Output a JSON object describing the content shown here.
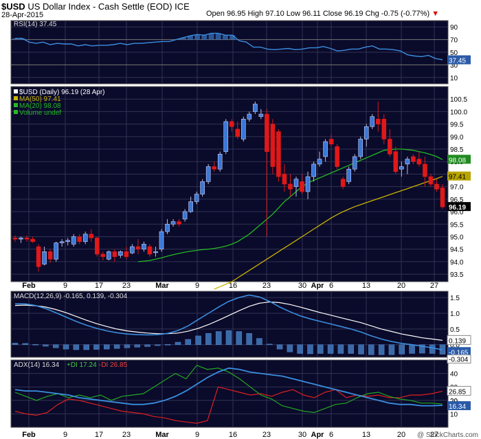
{
  "header": {
    "symbol": "$USD",
    "name": "US Dollar Index - Cash Settle (EOD)",
    "exchange": "ICE",
    "date": "28-Apr-2015",
    "ohlc": "Open 96.95  High 97.10  Low 96.11  Close 96.19  Chg -0.75 (-0.77%)",
    "chg_arrow": "▼"
  },
  "watermark": "@ StockCharts.com",
  "colors": {
    "background": "#0a0a2a",
    "grid": "#333355",
    "candle_up": "#3a78d8",
    "candle_down": "#e01818",
    "ma50": "#c8b400",
    "ma20": "#22bb22",
    "rsi": "#3a8fe0",
    "macd": "#3a8fe0",
    "signal": "#ffffff",
    "hist": "#3a6aa8",
    "adx": "#3a8fe0",
    "plus_di": "#22aa22",
    "minus_di": "#e02020"
  },
  "chart_data": [
    {
      "type": "line",
      "panel": "rsi",
      "legend": "RSI(14) 37.45",
      "ylim": [
        0,
        100
      ],
      "y_ticks": [
        "90",
        "70",
        "50",
        "30",
        "10"
      ],
      "last_label": "37.45",
      "values": [
        72,
        72,
        66,
        64,
        66,
        62,
        64,
        63,
        63,
        60,
        62,
        60,
        61,
        61,
        62,
        64,
        62,
        64,
        64,
        65,
        66,
        67,
        67,
        70,
        73,
        76,
        78,
        77,
        80,
        80,
        77,
        77,
        68,
        66,
        58,
        58,
        55,
        54,
        55,
        56,
        54,
        55,
        57,
        57,
        59,
        56,
        52,
        53,
        55,
        55,
        58,
        60,
        55,
        55,
        54,
        52,
        46,
        44,
        43,
        45,
        40,
        38
      ]
    },
    {
      "type": "candlestick",
      "panel": "price",
      "legend": [
        "$USD (Daily) 96.19 (28 Apr)",
        "MA(50) 97.41",
        "MA(20) 98.08",
        "Volume undef"
      ],
      "ylim": [
        93.2,
        101.0
      ],
      "y_ticks": [
        "100.5",
        "100.0",
        "99.5",
        "99.0",
        "98.5",
        "98.0",
        "97.5",
        "97.0",
        "96.5",
        "96.0",
        "95.5",
        "95.0",
        "94.5",
        "94.0",
        "93.5"
      ],
      "last_labels": {
        "ma20": "98.08",
        "ma50": "97.41",
        "close": "96.19"
      },
      "x_labels": [
        "Feb",
        "9",
        "17",
        "23",
        "Mar",
        "9",
        "16",
        "23",
        "30",
        "Apr",
        "6",
        "13",
        "20",
        "27"
      ],
      "candles": [
        [
          94.95,
          95.05,
          94.8,
          94.9
        ],
        [
          94.9,
          95.0,
          94.75,
          94.95
        ],
        [
          94.95,
          95.05,
          94.8,
          94.9
        ],
        [
          94.9,
          95.0,
          94.75,
          94.8
        ],
        [
          94.6,
          94.7,
          93.6,
          93.8
        ],
        [
          93.9,
          94.6,
          93.85,
          94.4
        ],
        [
          94.4,
          94.5,
          93.95,
          94.1
        ],
        [
          94.1,
          94.8,
          94.0,
          94.75
        ],
        [
          94.75,
          94.9,
          94.6,
          94.8
        ],
        [
          94.8,
          94.95,
          94.65,
          94.85
        ],
        [
          94.7,
          95.1,
          94.6,
          95.0
        ],
        [
          95.0,
          95.1,
          94.7,
          94.8
        ],
        [
          94.8,
          95.2,
          94.7,
          95.1
        ],
        [
          95.1,
          95.3,
          94.8,
          94.95
        ],
        [
          94.95,
          95.0,
          94.2,
          94.3
        ],
        [
          94.3,
          94.4,
          94.05,
          94.2
        ],
        [
          94.1,
          94.45,
          94.05,
          94.4
        ],
        [
          94.4,
          94.5,
          94.0,
          94.2
        ],
        [
          94.25,
          94.45,
          94.15,
          94.4
        ],
        [
          94.4,
          94.6,
          94.1,
          94.2
        ],
        [
          94.35,
          94.7,
          94.3,
          94.6
        ],
        [
          94.6,
          94.9,
          94.3,
          94.5
        ],
        [
          94.5,
          94.8,
          94.4,
          94.7
        ],
        [
          94.6,
          94.7,
          94.2,
          94.3
        ],
        [
          94.4,
          94.6,
          94.2,
          94.4
        ],
        [
          94.5,
          95.3,
          94.4,
          95.2
        ],
        [
          95.2,
          95.7,
          95.1,
          95.5
        ],
        [
          95.5,
          95.7,
          95.4,
          95.6
        ],
        [
          95.6,
          95.7,
          95.4,
          95.5
        ],
        [
          95.7,
          96.1,
          95.6,
          96.0
        ],
        [
          96.0,
          96.6,
          95.95,
          96.4
        ],
        [
          96.4,
          96.8,
          96.3,
          96.7
        ],
        [
          96.7,
          97.3,
          96.6,
          97.2
        ],
        [
          97.2,
          97.9,
          97.1,
          97.8
        ],
        [
          97.8,
          98.0,
          97.6,
          97.7
        ],
        [
          97.7,
          98.4,
          97.6,
          98.3
        ],
        [
          98.4,
          99.7,
          98.3,
          99.6
        ],
        [
          99.6,
          99.7,
          99.2,
          99.4
        ],
        [
          99.3,
          99.6,
          98.9,
          99.0
        ],
        [
          98.9,
          99.8,
          98.8,
          99.7
        ],
        [
          99.7,
          100.0,
          99.6,
          99.9
        ],
        [
          100.0,
          100.4,
          99.9,
          100.3
        ],
        [
          99.8,
          100.1,
          99.7,
          99.9
        ],
        [
          99.9,
          100.1,
          95.0,
          98.4
        ],
        [
          99.5,
          99.7,
          97.5,
          97.8
        ],
        [
          99.2,
          99.3,
          97.2,
          97.4
        ],
        [
          97.5,
          97.9,
          96.8,
          97.1
        ],
        [
          97.1,
          97.5,
          96.6,
          96.9
        ],
        [
          97.0,
          97.4,
          96.6,
          97.3
        ],
        [
          97.2,
          97.5,
          96.7,
          96.8
        ],
        [
          96.8,
          97.6,
          96.5,
          97.4
        ],
        [
          97.4,
          98.0,
          97.2,
          97.9
        ],
        [
          97.9,
          98.4,
          97.8,
          98.1
        ],
        [
          98.2,
          98.9,
          98.0,
          98.8
        ],
        [
          98.9,
          99.1,
          98.6,
          98.7
        ],
        [
          98.6,
          98.7,
          97.7,
          97.8
        ],
        [
          97.3,
          97.4,
          96.9,
          97.0
        ],
        [
          97.2,
          97.8,
          97.1,
          97.7
        ],
        [
          97.7,
          98.3,
          97.6,
          98.2
        ],
        [
          98.2,
          99.0,
          98.1,
          98.9
        ],
        [
          98.9,
          99.5,
          98.6,
          99.4
        ],
        [
          99.4,
          99.9,
          99.3,
          99.8
        ],
        [
          99.7,
          100.4,
          99.2,
          99.5
        ],
        [
          99.7,
          99.9,
          98.7,
          98.9
        ],
        [
          98.9,
          99.3,
          98.2,
          98.3
        ],
        [
          98.4,
          98.6,
          97.5,
          97.6
        ],
        [
          97.7,
          98.0,
          97.4,
          97.8
        ],
        [
          97.9,
          98.2,
          97.5,
          98.1
        ],
        [
          98.2,
          98.3,
          97.9,
          98.0
        ],
        [
          98.1,
          98.4,
          97.8,
          97.9
        ],
        [
          97.9,
          98.2,
          97.0,
          97.4
        ],
        [
          97.4,
          97.5,
          97.0,
          97.1
        ],
        [
          97.1,
          97.3,
          96.8,
          96.9
        ],
        [
          96.95,
          97.1,
          96.11,
          96.19
        ]
      ],
      "ma20": [
        94.0,
        94.02,
        94.05,
        94.1,
        94.15,
        94.22,
        94.28,
        94.33,
        94.38,
        94.42,
        94.45,
        94.48,
        94.5,
        94.53,
        94.57,
        94.62,
        94.7,
        94.8,
        94.95,
        95.1,
        95.3,
        95.5,
        95.7,
        95.9,
        96.15,
        96.4,
        96.6,
        96.8,
        97.0,
        97.15,
        97.25,
        97.35,
        97.45,
        97.55,
        97.65,
        97.75,
        97.85,
        97.95,
        98.05,
        98.15,
        98.25,
        98.35,
        98.45,
        98.48,
        98.5,
        98.5,
        98.48,
        98.45,
        98.4,
        98.35,
        98.28,
        98.2,
        98.08
      ],
      "ma50": [
        92.9,
        93.0,
        93.1,
        93.2,
        93.35,
        93.5,
        93.65,
        93.8,
        93.95,
        94.1,
        94.25,
        94.4,
        94.55,
        94.7,
        94.85,
        95.0,
        95.15,
        95.3,
        95.45,
        95.6,
        95.75,
        95.88,
        96.0,
        96.1,
        96.2,
        96.28,
        96.36,
        96.44,
        96.52,
        96.6,
        96.68,
        96.76,
        96.84,
        96.92,
        97.0,
        97.08,
        97.16,
        97.24,
        97.32,
        97.41
      ]
    },
    {
      "type": "line",
      "panel": "macd",
      "legend": "MACD(12,26,9) -0.165, 0.139, -0.304",
      "ylim": [
        -0.4,
        1.7
      ],
      "y_ticks": [
        "1.5",
        "1.0",
        "0.5",
        "0.0"
      ],
      "last_labels": [
        "0.139",
        "-0.165",
        "-0.304"
      ],
      "macd": [
        1.3,
        1.3,
        1.25,
        1.15,
        1.02,
        0.88,
        0.74,
        0.62,
        0.52,
        0.44,
        0.38,
        0.34,
        0.32,
        0.31,
        0.32,
        0.36,
        0.45,
        0.6,
        0.8,
        1.0,
        1.2,
        1.38,
        1.5,
        1.58,
        1.52,
        1.38,
        1.2,
        1.05,
        0.92,
        0.82,
        0.74,
        0.66,
        0.58,
        0.5,
        0.4,
        0.28,
        0.18,
        0.1,
        0.04,
        0.0,
        -0.05,
        -0.1,
        -0.165
      ],
      "signal": [
        1.25,
        1.26,
        1.24,
        1.2,
        1.12,
        1.02,
        0.9,
        0.78,
        0.67,
        0.58,
        0.5,
        0.44,
        0.4,
        0.37,
        0.35,
        0.35,
        0.37,
        0.43,
        0.52,
        0.64,
        0.78,
        0.93,
        1.08,
        1.22,
        1.32,
        1.36,
        1.34,
        1.28,
        1.2,
        1.11,
        1.02,
        0.94,
        0.86,
        0.78,
        0.7,
        0.6,
        0.5,
        0.42,
        0.34,
        0.28,
        0.22,
        0.18,
        0.139
      ],
      "histogram": [
        0.05,
        0.04,
        0.01,
        -0.05,
        -0.1,
        -0.14,
        -0.16,
        -0.16,
        -0.15,
        -0.14,
        -0.12,
        -0.1,
        -0.08,
        -0.06,
        -0.03,
        0.01,
        0.08,
        0.17,
        0.28,
        0.36,
        0.42,
        0.45,
        0.42,
        0.36,
        0.2,
        0.02,
        -0.14,
        -0.23,
        -0.28,
        -0.29,
        -0.28,
        -0.28,
        -0.28,
        -0.28,
        -0.3,
        -0.32,
        -0.32,
        -0.32,
        -0.3,
        -0.28,
        -0.27,
        -0.28,
        -0.304
      ]
    },
    {
      "type": "line",
      "panel": "adx",
      "legend": {
        "adx": "ADX(14) 16.34",
        "plus_di": "+DI 17.24",
        "minus_di": "-DI 26.85"
      },
      "ylim": [
        0,
        50
      ],
      "y_ticks": [
        "40",
        "30",
        "20",
        "10"
      ],
      "last_labels": [
        "26.85",
        "20",
        "16.34"
      ],
      "x_labels": [
        "Feb",
        "9",
        "17",
        "23",
        "Mar",
        "9",
        "16",
        "23",
        "30",
        "Apr",
        "6",
        "13",
        "20",
        "27"
      ],
      "adx": [
        28,
        27,
        27,
        26,
        25,
        24,
        22,
        21,
        20,
        19,
        18,
        17,
        17,
        18,
        20,
        23,
        27,
        32,
        37,
        41,
        44,
        43,
        41,
        40,
        39,
        38,
        36,
        34,
        32,
        30,
        28,
        26,
        24,
        22,
        20,
        18,
        17,
        17,
        16,
        16,
        16.34
      ],
      "plus_di": [
        26,
        23,
        20,
        23,
        25,
        22,
        24,
        22,
        24,
        20,
        23,
        24,
        25,
        30,
        35,
        40,
        36,
        46,
        43,
        44,
        41,
        36,
        30,
        24,
        21,
        16,
        14,
        12,
        11,
        14,
        17,
        18,
        22,
        25,
        26,
        23,
        21,
        20,
        18,
        18,
        17.24
      ],
      "minus_di": [
        12,
        10,
        9,
        11,
        17,
        21,
        20,
        18,
        16,
        14,
        12,
        11,
        10,
        8,
        7,
        5,
        4,
        3,
        5,
        30,
        28,
        26,
        24,
        25,
        23,
        26,
        28,
        24,
        22,
        26,
        28,
        22,
        24,
        23,
        24,
        22,
        22,
        24,
        24,
        25,
        26.85
      ]
    }
  ]
}
